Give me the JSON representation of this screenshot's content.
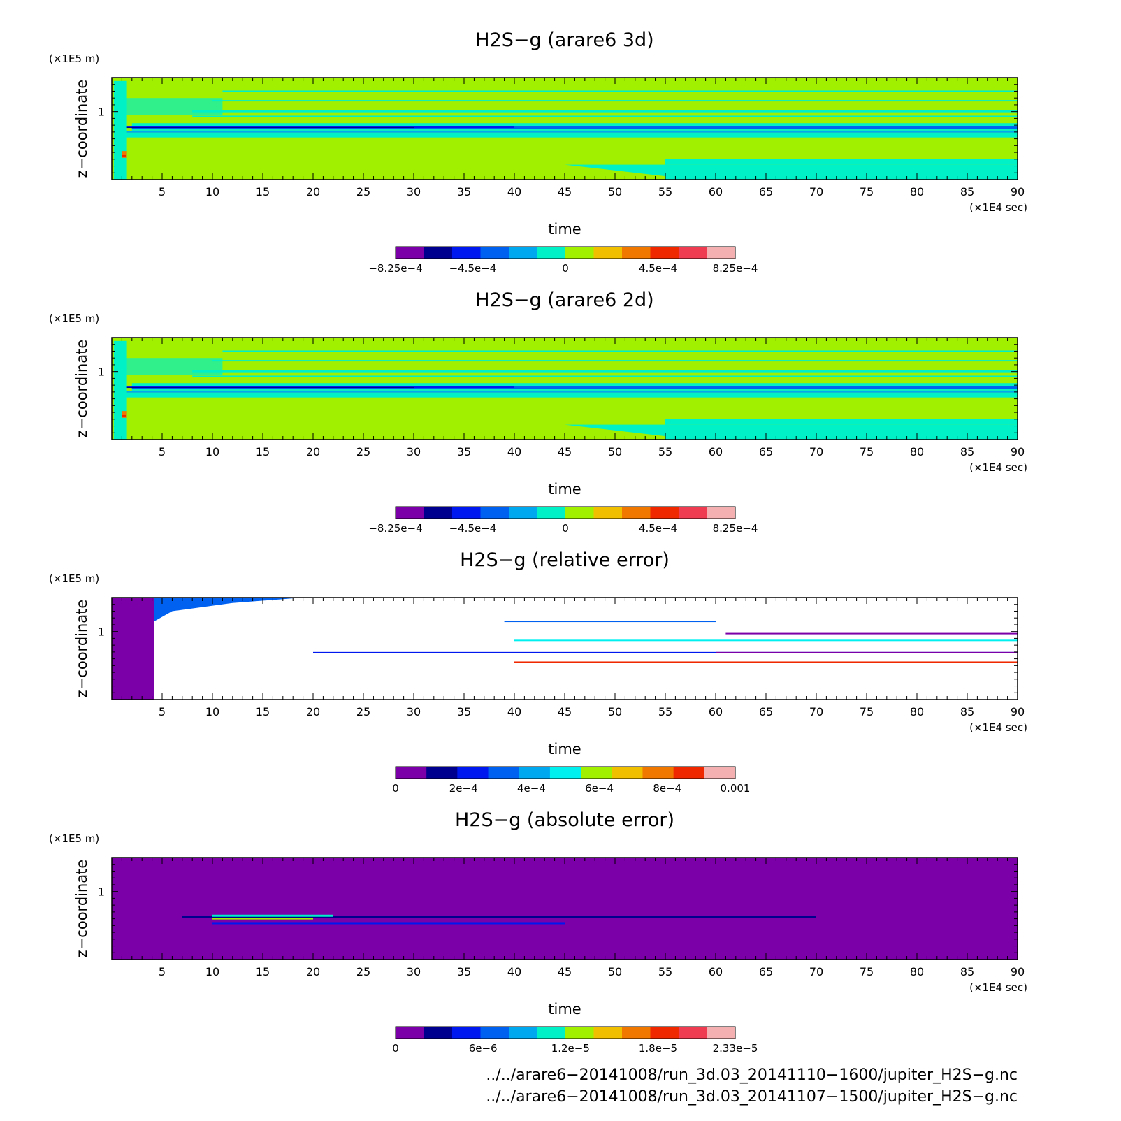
{
  "chart_data": [
    {
      "type": "heatmap",
      "title": "H2S−g (arare6 3d)",
      "xlabel": "time",
      "ylabel": "z−coordinate",
      "xunit": "(×1E4 sec)",
      "yunit": "(×1E5 m)",
      "xlim": [
        0,
        90
      ],
      "xticks": [
        5,
        10,
        15,
        20,
        25,
        30,
        35,
        40,
        45,
        50,
        55,
        60,
        65,
        70,
        75,
        80,
        85,
        90
      ],
      "ylim": [
        0,
        1.5
      ],
      "yticks": [
        1
      ],
      "colorbar": {
        "min": -0.000825,
        "max": 0.000825,
        "colors": [
          "#7b00a8",
          "#00008f",
          "#0018f0",
          "#0060f0",
          "#00a8f0",
          "#00f0c8",
          "#a0f000",
          "#f0c000",
          "#f07800",
          "#f02800",
          "#f03c50",
          "#f4b0b0"
        ],
        "tick_labels": [
          "−8.25e−4",
          "−4.5e−4",
          "0",
          "4.5e−4",
          "8.25e−4"
        ]
      }
    },
    {
      "type": "heatmap",
      "title": "H2S−g (arare6 2d)",
      "xlabel": "time",
      "ylabel": "z−coordinate",
      "xunit": "(×1E4 sec)",
      "yunit": "(×1E5 m)",
      "xlim": [
        0,
        90
      ],
      "xticks": [
        5,
        10,
        15,
        20,
        25,
        30,
        35,
        40,
        45,
        50,
        55,
        60,
        65,
        70,
        75,
        80,
        85,
        90
      ],
      "ylim": [
        0,
        1.5
      ],
      "yticks": [
        1
      ],
      "colorbar": {
        "min": -0.000825,
        "max": 0.000825,
        "colors": [
          "#7b00a8",
          "#00008f",
          "#0018f0",
          "#0060f0",
          "#00a8f0",
          "#00f0c8",
          "#a0f000",
          "#f0c000",
          "#f07800",
          "#f02800",
          "#f03c50",
          "#f4b0b0"
        ],
        "tick_labels": [
          "−8.25e−4",
          "−4.5e−4",
          "0",
          "4.5e−4",
          "8.25e−4"
        ]
      }
    },
    {
      "type": "heatmap",
      "title": "H2S−g (relative error)",
      "xlabel": "time",
      "ylabel": "z−coordinate",
      "xunit": "(×1E4 sec)",
      "yunit": "(×1E5 m)",
      "xlim": [
        0,
        90
      ],
      "xticks": [
        5,
        10,
        15,
        20,
        25,
        30,
        35,
        40,
        45,
        50,
        55,
        60,
        65,
        70,
        75,
        80,
        85,
        90
      ],
      "ylim": [
        0,
        1.5
      ],
      "yticks": [
        1
      ],
      "colorbar": {
        "min": 0,
        "max": 0.001,
        "colors": [
          "#7b00a8",
          "#00008f",
          "#0018f0",
          "#0060f0",
          "#00a8f0",
          "#00f0f0",
          "#a0f000",
          "#f0c000",
          "#f07800",
          "#f02800",
          "#f4b0b0"
        ],
        "tick_labels": [
          "0",
          "2e−4",
          "4e−4",
          "6e−4",
          "8e−4",
          "0.001"
        ]
      }
    },
    {
      "type": "heatmap",
      "title": "H2S−g (absolute error)",
      "xlabel": "time",
      "ylabel": "z−coordinate",
      "xunit": "(×1E4 sec)",
      "yunit": "(×1E5 m)",
      "xlim": [
        0,
        90
      ],
      "xticks": [
        5,
        10,
        15,
        20,
        25,
        30,
        35,
        40,
        45,
        50,
        55,
        60,
        65,
        70,
        75,
        80,
        85,
        90
      ],
      "ylim": [
        0,
        1.5
      ],
      "yticks": [
        1
      ],
      "colorbar": {
        "min": 0,
        "max": 2.33e-05,
        "colors": [
          "#7b00a8",
          "#00008f",
          "#0018f0",
          "#0060f0",
          "#00a8f0",
          "#00f0c8",
          "#a0f000",
          "#f0c000",
          "#f07800",
          "#f02800",
          "#f03c50",
          "#f4b0b0"
        ],
        "tick_labels": [
          "0",
          "6e−6",
          "1.2e−5",
          "1.8e−5",
          "2.33e−5"
        ]
      }
    }
  ],
  "footer": {
    "file1": "../../arare6−20141008/run_3d.03_20141110−1600/jupiter_H2S−g.nc",
    "file2": "../../arare6−20141008/run_3d.03_20141107−1500/jupiter_H2S−g.nc"
  }
}
